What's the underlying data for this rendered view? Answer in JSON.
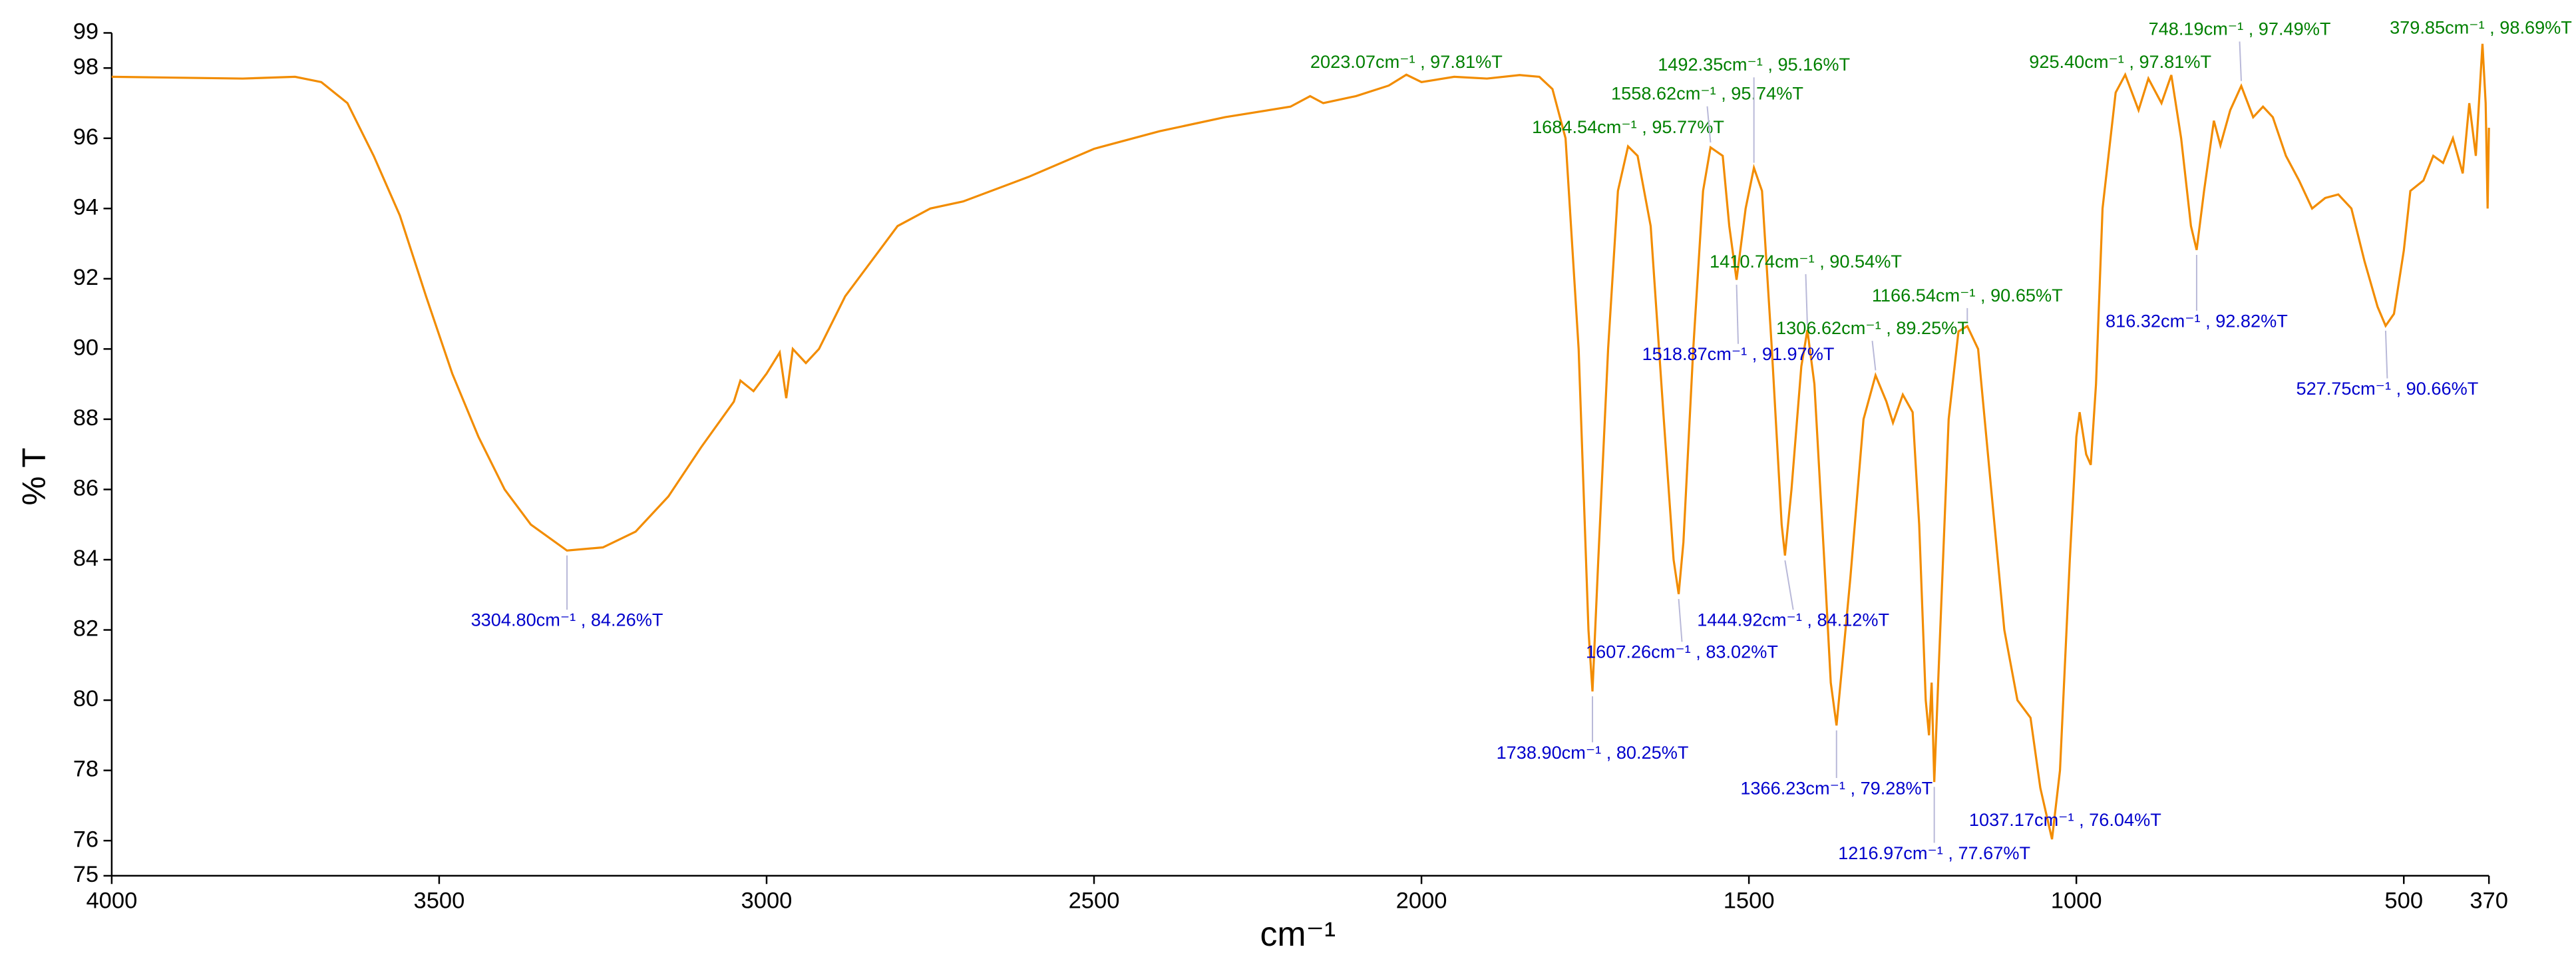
{
  "chart_data": {
    "type": "line",
    "x_label": "cm⁻¹",
    "y_label": "% T",
    "xlim": [
      4000,
      370
    ],
    "ylim": [
      75,
      99
    ],
    "xticks": [
      4000,
      3500,
      3000,
      2500,
      2000,
      1500,
      1000,
      500,
      370
    ],
    "yticks": [
      75,
      76,
      78,
      80,
      82,
      84,
      86,
      88,
      90,
      92,
      94,
      96,
      98,
      99
    ],
    "color": "#f28c00",
    "x": [
      4000,
      3800,
      3720,
      3680,
      3640,
      3600,
      3560,
      3520,
      3480,
      3440,
      3400,
      3360,
      3304.8,
      3250,
      3200,
      3150,
      3100,
      3050,
      3040,
      3020,
      3000,
      2980,
      2970,
      2960,
      2940,
      2920,
      2880,
      2840,
      2800,
      2750,
      2700,
      2600,
      2500,
      2400,
      2300,
      2200,
      2170,
      2150,
      2100,
      2050,
      2023.07,
      2000,
      1950,
      1900,
      1850,
      1820,
      1800,
      1780,
      1760,
      1745,
      1738.9,
      1730,
      1715,
      1700,
      1684.54,
      1670,
      1650,
      1630,
      1615,
      1607.26,
      1600,
      1585,
      1570,
      1558.62,
      1540,
      1530,
      1518.87,
      1505,
      1492.35,
      1480,
      1465,
      1450,
      1444.92,
      1435,
      1420,
      1410.74,
      1400,
      1385,
      1375,
      1366.23,
      1355,
      1345,
      1325,
      1306.62,
      1290,
      1280,
      1265,
      1250,
      1240,
      1230,
      1225,
      1221,
      1216.97,
      1210,
      1195,
      1180,
      1166.54,
      1150,
      1130,
      1110,
      1090,
      1070,
      1055,
      1037.17,
      1025,
      1010,
      1000,
      995,
      985,
      978,
      970,
      960,
      940,
      925.4,
      905,
      890,
      870,
      855,
      840,
      825,
      816.32,
      805,
      790,
      780,
      765,
      748.19,
      730,
      715,
      700,
      680,
      660,
      640,
      620,
      600,
      580,
      560,
      540,
      527.75,
      515,
      500,
      490,
      470,
      455,
      440,
      425,
      410,
      400,
      390,
      379.85,
      375,
      372,
      370
    ],
    "values": [
      97.75,
      97.7,
      97.75,
      97.6,
      97.0,
      95.5,
      93.8,
      91.5,
      89.3,
      87.5,
      86.0,
      85.0,
      84.26,
      84.35,
      84.8,
      85.8,
      87.2,
      88.5,
      89.1,
      88.8,
      89.3,
      89.9,
      88.6,
      90.0,
      89.6,
      90.0,
      91.5,
      92.5,
      93.5,
      94.0,
      94.2,
      94.9,
      95.7,
      96.2,
      96.6,
      96.9,
      97.2,
      97.0,
      97.2,
      97.5,
      97.81,
      97.6,
      97.75,
      97.7,
      97.8,
      97.75,
      97.4,
      96.0,
      90.0,
      82.0,
      80.25,
      84.0,
      90.0,
      94.5,
      95.77,
      95.5,
      93.5,
      88.0,
      84.0,
      83.02,
      84.5,
      90.0,
      94.5,
      95.74,
      95.5,
      93.5,
      91.97,
      94.0,
      95.16,
      94.5,
      90.0,
      85.0,
      84.12,
      86.0,
      89.5,
      90.54,
      89.0,
      84.0,
      80.5,
      79.28,
      81.5,
      83.5,
      88.0,
      89.25,
      88.5,
      87.9,
      88.7,
      88.2,
      85.0,
      80.0,
      79.0,
      80.5,
      77.67,
      81.0,
      88.0,
      90.5,
      90.65,
      90.0,
      86.0,
      82.0,
      80.0,
      79.5,
      77.5,
      76.04,
      78.0,
      84.0,
      87.5,
      88.2,
      87.0,
      86.7,
      89.0,
      94.0,
      97.3,
      97.81,
      96.8,
      97.7,
      97.0,
      97.8,
      96.0,
      93.5,
      92.82,
      94.5,
      96.5,
      95.8,
      96.8,
      97.49,
      96.6,
      96.9,
      96.6,
      95.5,
      94.8,
      94.0,
      94.3,
      94.4,
      94.0,
      92.5,
      91.2,
      90.66,
      91.0,
      92.8,
      94.5,
      94.8,
      95.5,
      95.3,
      96.0,
      95.0,
      97.0,
      95.5,
      98.69,
      97.0,
      94.0,
      96.3
    ],
    "annotations": [
      {
        "x": 3304.8,
        "y": 84.26,
        "label": "3304.80cm⁻¹ , 84.26%T",
        "color": "#0000cc"
      },
      {
        "x": 2023.07,
        "y": 97.81,
        "label": "2023.07cm⁻¹ , 97.81%T",
        "color": "#008000"
      },
      {
        "x": 1738.9,
        "y": 80.25,
        "label": "1738.90cm⁻¹ , 80.25%T",
        "color": "#0000cc"
      },
      {
        "x": 1684.54,
        "y": 95.77,
        "label": "1684.54cm⁻¹ , 95.77%T",
        "color": "#008000"
      },
      {
        "x": 1607.26,
        "y": 83.02,
        "label": "1607.26cm⁻¹ , 83.02%T",
        "color": "#0000cc"
      },
      {
        "x": 1558.62,
        "y": 95.74,
        "label": "1558.62cm⁻¹ , 95.74%T",
        "color": "#008000"
      },
      {
        "x": 1518.87,
        "y": 91.97,
        "label": "1518.87cm⁻¹ , 91.97%T",
        "color": "#0000cc"
      },
      {
        "x": 1492.35,
        "y": 95.16,
        "label": "1492.35cm⁻¹ , 95.16%T",
        "color": "#008000"
      },
      {
        "x": 1444.92,
        "y": 84.12,
        "label": "1444.92cm⁻¹ , 84.12%T",
        "color": "#0000cc"
      },
      {
        "x": 1410.74,
        "y": 90.54,
        "label": "1410.74cm⁻¹ , 90.54%T",
        "color": "#008000"
      },
      {
        "x": 1366.23,
        "y": 79.28,
        "label": "1366.23cm⁻¹ , 79.28%T",
        "color": "#0000cc"
      },
      {
        "x": 1306.62,
        "y": 89.25,
        "label": "1306.62cm⁻¹ , 89.25%T",
        "color": "#008000"
      },
      {
        "x": 1216.97,
        "y": 77.67,
        "label": "1216.97cm⁻¹ , 77.67%T",
        "color": "#0000cc"
      },
      {
        "x": 1166.54,
        "y": 90.65,
        "label": "1166.54cm⁻¹ , 90.65%T",
        "color": "#008000"
      },
      {
        "x": 1037.17,
        "y": 76.04,
        "label": "1037.17cm⁻¹ , 76.04%T",
        "color": "#0000cc"
      },
      {
        "x": 925.4,
        "y": 97.81,
        "label": "925.40cm⁻¹ , 97.81%T",
        "color": "#008000"
      },
      {
        "x": 816.32,
        "y": 92.82,
        "label": "816.32cm⁻¹ , 92.82%T",
        "color": "#0000cc"
      },
      {
        "x": 748.19,
        "y": 97.49,
        "label": "748.19cm⁻¹ , 97.49%T",
        "color": "#008000"
      },
      {
        "x": 527.75,
        "y": 90.66,
        "label": "527.75cm⁻¹ , 90.66%T",
        "color": "#0000cc"
      },
      {
        "x": 379.85,
        "y": 98.69,
        "label": "379.85cm⁻¹ , 98.69%T",
        "color": "#008000"
      }
    ]
  }
}
